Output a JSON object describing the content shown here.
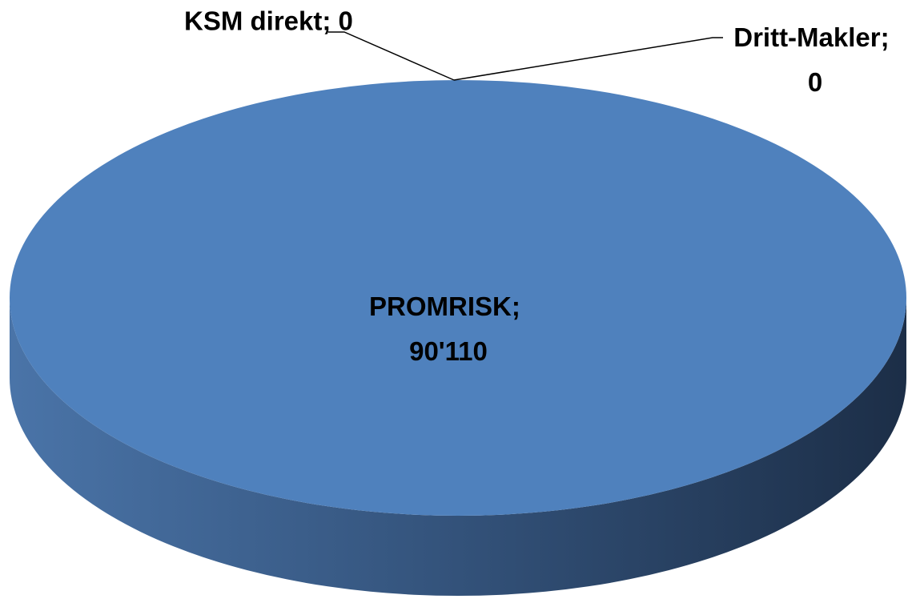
{
  "chart_data": {
    "type": "pie",
    "values": [
      90110,
      0,
      0
    ],
    "value_labels": [
      "PROMRISK; 90'110",
      "KSM direkt; 0",
      "Dritt-Makler; 0"
    ],
    "colors": [
      "#4f81bd",
      "#c0504d",
      "#9bbb59"
    ],
    "three_d": true
  }
}
